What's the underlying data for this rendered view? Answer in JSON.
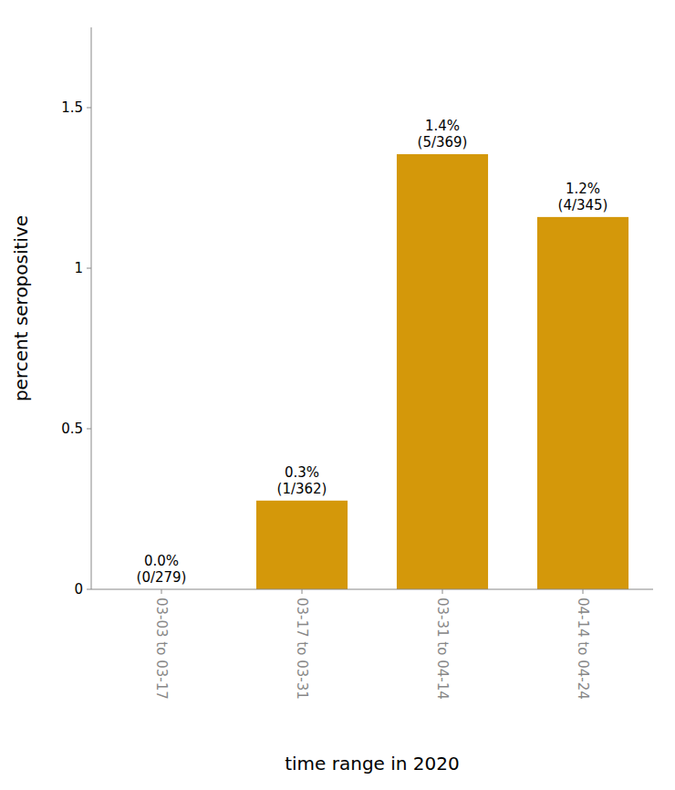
{
  "chart_data": {
    "type": "bar",
    "categories": [
      "03-03 to 03-17",
      "03-17 to 03-31",
      "03-31 to 04-14",
      "04-14 to 04-24"
    ],
    "values": [
      0.0,
      0.2762430939,
      1.3550135501,
      1.1594202899
    ],
    "value_labels": [
      "0.0%\n(0/279)",
      "0.3%\n(1/362)",
      "1.4%\n(5/369)",
      "1.2%\n(4/345)"
    ],
    "data_labels": true,
    "color": "#D4980A",
    "xlabel": "time range in 2020",
    "ylabel": "percent seropositive",
    "ylim": [
      0,
      1.75
    ],
    "yticks": [
      0,
      0.5,
      1,
      1.5
    ],
    "grid": false
  }
}
